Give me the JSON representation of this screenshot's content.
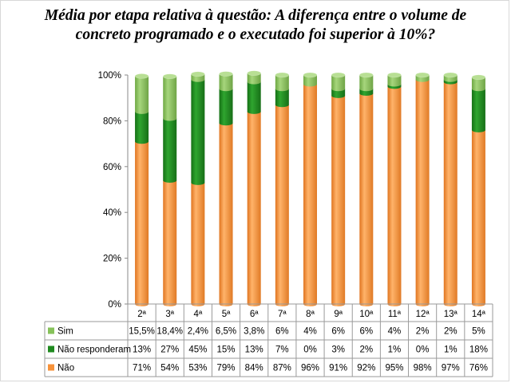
{
  "chart_data": {
    "type": "bar",
    "stacked": true,
    "cylindrical_3d": true,
    "title_lines": [
      "Média por etapa relativa à questão: A diferença entre o volume de",
      "concreto programado e o executado foi superior à 10%?"
    ],
    "categories": [
      "2ª",
      "3ª",
      "4ª",
      "5ª",
      "6ª",
      "7ª",
      "8ª",
      "9ª",
      "10ª",
      "11ª",
      "12ª",
      "13ª",
      "14ª"
    ],
    "y_ticks": [
      "0%",
      "20%",
      "40%",
      "60%",
      "80%",
      "100%"
    ],
    "ylim": [
      0,
      100
    ],
    "legend_placement": "data table rows",
    "series": [
      {
        "name": "Não",
        "color": "#f7923a",
        "values": [
          71,
          54,
          53,
          79,
          84,
          87,
          96,
          91,
          92,
          95,
          98,
          97,
          76
        ],
        "labels": [
          "71%",
          "54%",
          "53%",
          "79%",
          "84%",
          "87%",
          "96%",
          "91%",
          "92%",
          "95%",
          "98%",
          "97%",
          "76%"
        ]
      },
      {
        "name": "Não responderam",
        "color": "#1f8a1f",
        "values": [
          13,
          27,
          45,
          15,
          13,
          7,
          0,
          3,
          2,
          1,
          0,
          1,
          18
        ],
        "labels": [
          "13%",
          "27%",
          "45%",
          "15%",
          "13%",
          "7%",
          "0%",
          "3%",
          "2%",
          "1%",
          "0%",
          "1%",
          "18%"
        ]
      },
      {
        "name": "Sim",
        "color": "#86c25a",
        "values": [
          15.5,
          18.4,
          2.4,
          6.5,
          3.8,
          6,
          4,
          6,
          6,
          4,
          2,
          2,
          5
        ],
        "labels": [
          "15,5%",
          "18,4%",
          "2,4%",
          "6,5%",
          "3,8%",
          "6%",
          "4%",
          "6%",
          "6%",
          "4%",
          "2%",
          "2%",
          "5%"
        ]
      }
    ],
    "table_row_order": [
      "Sim",
      "Não responderam",
      "Não"
    ]
  }
}
